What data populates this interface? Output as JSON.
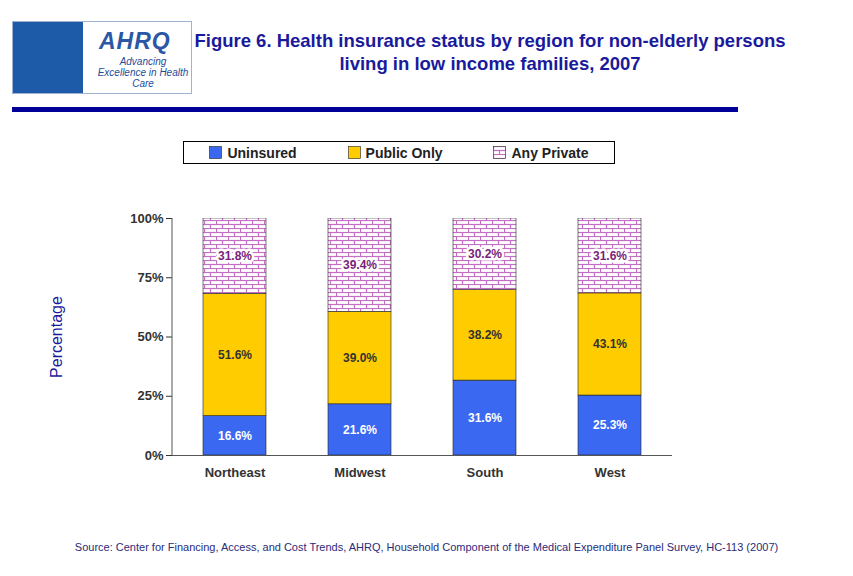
{
  "chart_data": {
    "type": "bar",
    "stacked": true,
    "data_labels": true,
    "legend": "top",
    "title": "Figure 6. Health insurance status by region for non-elderly persons living in low income families, 2007",
    "y_label": "Percentage",
    "source": "Source: Center for Financing, Access, and Cost Trends, AHRQ, Household Component of the Medical Expenditure Panel Survey, HC-113 (2007)",
    "annotations": [
      "AHRQ",
      "Advancing Excellence in Health Care"
    ],
    "categories": [
      "Northeast",
      "Midwest",
      "South",
      "West"
    ],
    "series": [
      {
        "name": "Uninsured",
        "color": "#3b68f0",
        "values": [
          16.6,
          21.6,
          31.6,
          25.3
        ],
        "value_labels": [
          "16.6%",
          "21.6%",
          "31.6%",
          "25.3%"
        ]
      },
      {
        "name": "Public Only",
        "color": "#ffcc00",
        "values": [
          51.6,
          39.0,
          38.2,
          43.1
        ],
        "value_labels": [
          "51.6%",
          "39.0%",
          "38.2%",
          "43.1%"
        ]
      },
      {
        "name": "Any Private",
        "color": "#c36fc3",
        "values": [
          31.8,
          39.4,
          30.2,
          31.6
        ],
        "value_labels": [
          "31.8%",
          "39.4%",
          "30.2%",
          "31.6%"
        ]
      }
    ],
    "ylim": [
      0,
      100
    ],
    "yticks": [
      {
        "value": 0,
        "label": "0%"
      },
      {
        "value": 25,
        "label": "25%"
      },
      {
        "value": 50,
        "label": "50%"
      },
      {
        "value": 75,
        "label": "75%"
      },
      {
        "value": 100,
        "label": "100%"
      }
    ]
  }
}
